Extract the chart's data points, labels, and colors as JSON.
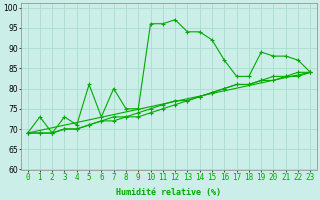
{
  "xlabel": "Humidité relative (%)",
  "background_color": "#cceee8",
  "grid_color": "#aaddcc",
  "line_color": "#00aa00",
  "xlim": [
    -0.5,
    23.5
  ],
  "ylim": [
    60,
    101
  ],
  "yticks": [
    60,
    65,
    70,
    75,
    80,
    85,
    90,
    95,
    100
  ],
  "x_ticks": [
    0,
    1,
    2,
    3,
    4,
    5,
    6,
    7,
    8,
    9,
    10,
    11,
    12,
    13,
    14,
    15,
    16,
    17,
    18,
    19,
    20,
    21,
    22,
    23
  ],
  "series1": {
    "x": [
      0,
      1,
      2,
      3,
      4,
      5,
      6,
      7,
      8,
      9,
      10,
      11,
      12,
      13,
      14,
      15,
      16,
      17,
      18,
      19,
      20,
      21,
      22,
      23
    ],
    "y": [
      69,
      73,
      69,
      73,
      71,
      81,
      73,
      80,
      75,
      75,
      96,
      96,
      97,
      94,
      94,
      92,
      87,
      83,
      83,
      89,
      88,
      88,
      87,
      84
    ]
  },
  "series2": {
    "x": [
      0,
      1,
      2,
      3,
      4,
      5,
      6,
      7,
      8,
      9,
      10,
      11,
      12,
      13,
      14,
      15,
      16,
      17,
      18,
      19,
      20,
      21,
      22,
      23
    ],
    "y": [
      69,
      69,
      69,
      70,
      70,
      71,
      72,
      72,
      73,
      73,
      74,
      75,
      76,
      77,
      78,
      79,
      80,
      81,
      81,
      82,
      82,
      83,
      83,
      84
    ]
  },
  "series3": {
    "x": [
      0,
      1,
      2,
      3,
      4,
      5,
      6,
      7,
      8,
      9,
      10,
      11,
      12,
      13,
      14,
      15,
      16,
      17,
      18,
      19,
      20,
      21,
      22,
      23
    ],
    "y": [
      69,
      69,
      69,
      70,
      70,
      71,
      72,
      73,
      73,
      74,
      75,
      76,
      77,
      77,
      78,
      79,
      80,
      81,
      81,
      82,
      83,
      83,
      84,
      84
    ]
  },
  "series4_x": [
    0,
    23
  ],
  "series4_y": [
    69,
    84
  ],
  "xlabel_fontsize": 6,
  "tick_fontsize": 5.5
}
